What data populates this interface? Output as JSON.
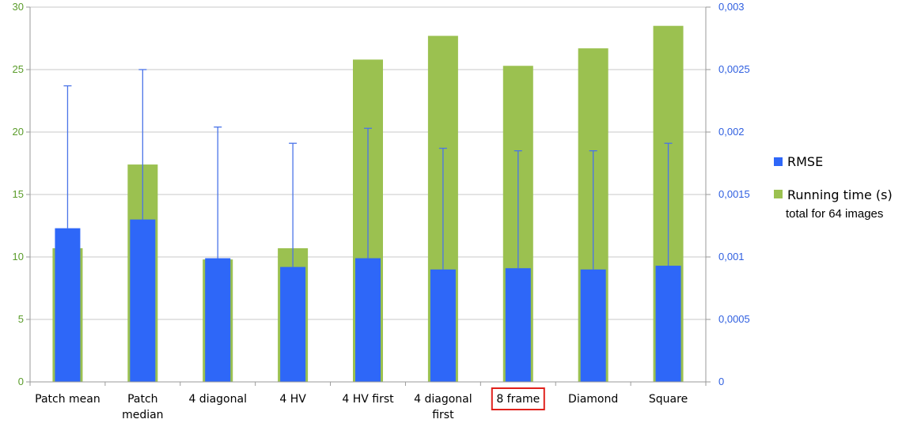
{
  "chart_data": {
    "type": "bar",
    "categories": [
      "Patch mean",
      "Patch\nmedian",
      "4 diagonal",
      "4 HV",
      "4 HV first",
      "4 diagonal\nfirst",
      "8 frame",
      "Diamond",
      "Square"
    ],
    "highlighted_category": "8 frame",
    "series": [
      {
        "name": "Running time (s)",
        "sub_label": "total for 64 images",
        "axis": "left",
        "color": "#9bc150",
        "values": [
          10.7,
          17.4,
          9.8,
          10.7,
          25.8,
          27.7,
          25.3,
          26.7,
          28.5
        ]
      },
      {
        "name": "RMSE",
        "axis": "right",
        "color": "#2e67f8",
        "values": [
          0.00123,
          0.0013,
          0.00099,
          0.00092,
          0.00099,
          0.0009,
          0.00091,
          0.0009,
          0.00093
        ],
        "error_upper": [
          0.00237,
          0.0025,
          0.00204,
          0.00191,
          0.00203,
          0.00187,
          0.00185,
          0.00185,
          0.00191
        ]
      }
    ],
    "y_left": {
      "lim": [
        0,
        30
      ],
      "ticks": [
        "0",
        "5",
        "10",
        "15",
        "20",
        "25",
        "30"
      ],
      "color": "#5a9c2a"
    },
    "y_right": {
      "lim": [
        0,
        0.003
      ],
      "ticks": [
        "0",
        "0,0005",
        "0,001",
        "0,0015",
        "0,002",
        "0,0025",
        "0,003"
      ],
      "color": "#2f5fe0"
    },
    "grid": true,
    "legend_position": "right"
  }
}
